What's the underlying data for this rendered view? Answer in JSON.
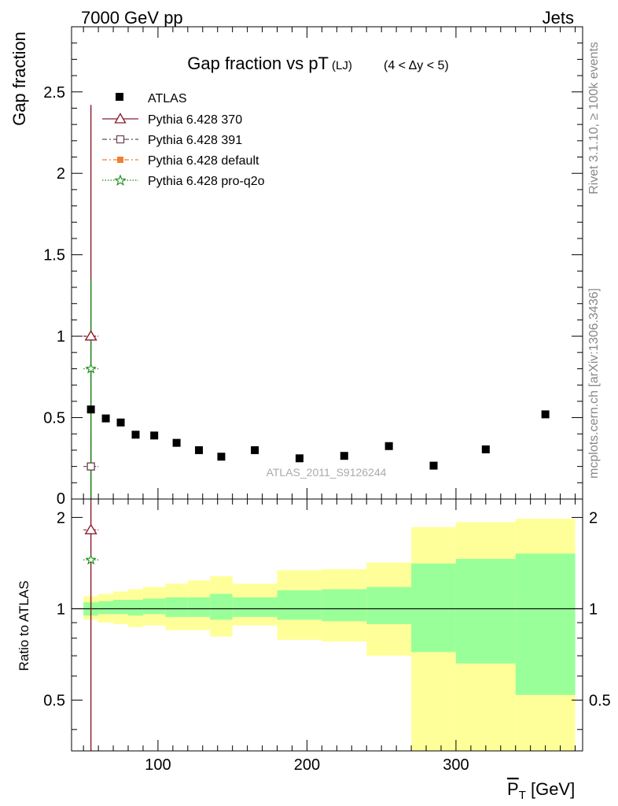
{
  "header": {
    "energy_label": "7000 GeV pp",
    "process_label": "Jets"
  },
  "side_labels": {
    "rivet": "Rivet 3.1.10, ≥ 100k events",
    "mcplots": "mcplots.cern.ch [arXiv:1306.3436]"
  },
  "watermark": "ATLAS_2011_S9126244",
  "colors": {
    "data": "#000000",
    "pythia_370": "#8b1a2b",
    "pythia_391": "#6e4a56",
    "pythia_default": "#f08030",
    "pythia_proq2o": "#1a8c1a",
    "band_inner": "#99ff99",
    "band_outer": "#ffff99"
  },
  "chart_data": [
    {
      "type": "scatter",
      "title": "Gap fraction vs pT",
      "title_sub": "(LJ)",
      "title_cut": "(4 < Δy < 5)",
      "ylabel": "Gap fraction",
      "xlim": [
        42,
        385
      ],
      "ylim": [
        0,
        2.9
      ],
      "yticks": [
        "0.5",
        "1",
        "1.5",
        "2",
        "2.5"
      ],
      "legend_position": "top-left",
      "series": [
        {
          "name": "ATLAS",
          "marker": "square",
          "x": [
            55,
            65,
            75,
            85,
            97.5,
            112.5,
            127.5,
            142.5,
            165,
            195,
            225,
            255,
            285,
            320,
            360
          ],
          "y": [
            0.55,
            0.495,
            0.47,
            0.395,
            0.39,
            0.345,
            0.3,
            0.26,
            0.3,
            0.25,
            0.265,
            0.325,
            0.205,
            0.305,
            0.52
          ]
        },
        {
          "name": "Pythia 6.428 370",
          "marker": "triangle-open",
          "x": [
            55
          ],
          "y": [
            1.0
          ],
          "yerr_low": [
            1.0
          ],
          "yerr_high": [
            1.42
          ],
          "xerr": [
            5
          ]
        },
        {
          "name": "Pythia 6.428 391",
          "marker": "square-open",
          "x": [
            55
          ],
          "y": [
            0.2
          ],
          "yerr_low": [
            0.2
          ],
          "yerr_high": [
            0.2
          ],
          "xerr": [
            5
          ]
        },
        {
          "name": "Pythia 6.428 default",
          "marker": "square-filled",
          "x": [],
          "y": []
        },
        {
          "name": "Pythia 6.428 pro-q2o",
          "marker": "star",
          "x": [
            55
          ],
          "y": [
            0.8
          ],
          "yerr_low": [
            0.8
          ],
          "yerr_high": [
            0.55
          ],
          "xerr": [
            5
          ]
        }
      ]
    },
    {
      "type": "area",
      "ylabel": "Ratio to ATLAS",
      "xlabel": "P",
      "xlabel_sub": "T",
      "xlabel_unit": " [GeV]",
      "xlim": [
        42,
        385
      ],
      "ylim": [
        0.34,
        2.3
      ],
      "xticks": [
        "100",
        "200",
        "300"
      ],
      "yticks": [
        "0.5",
        "1",
        "2"
      ],
      "bin_edges": [
        50,
        60,
        70,
        80,
        90,
        105,
        120,
        135,
        150,
        180,
        210,
        240,
        270,
        300,
        340,
        380
      ],
      "inner_band_low": [
        0.95,
        0.96,
        0.96,
        0.95,
        0.96,
        0.94,
        0.94,
        0.92,
        0.94,
        0.92,
        0.91,
        0.89,
        0.72,
        0.66,
        0.52
      ],
      "inner_band_high": [
        1.05,
        1.06,
        1.07,
        1.07,
        1.08,
        1.09,
        1.09,
        1.12,
        1.09,
        1.15,
        1.16,
        1.18,
        1.41,
        1.46,
        1.52
      ],
      "outer_band_low": [
        0.92,
        0.9,
        0.89,
        0.87,
        0.88,
        0.85,
        0.85,
        0.81,
        0.88,
        0.79,
        0.78,
        0.7,
        0.34,
        0.34,
        0.34
      ],
      "outer_band_high": [
        1.1,
        1.12,
        1.14,
        1.16,
        1.18,
        1.21,
        1.24,
        1.28,
        1.21,
        1.34,
        1.35,
        1.42,
        1.86,
        1.93,
        1.98
      ],
      "reference_line": 1,
      "series": [
        {
          "name": "Pythia 6.428 370",
          "marker": "triangle-open",
          "x": [
            55
          ],
          "y": [
            1.82
          ],
          "yerr_low": [
            1.82
          ],
          "yerr_high": [
            1.0
          ],
          "xerr": [
            5
          ]
        },
        {
          "name": "Pythia 6.428 pro-q2o",
          "marker": "star",
          "x": [
            55
          ],
          "y": [
            1.45
          ],
          "xerr": [
            5
          ]
        }
      ]
    }
  ]
}
